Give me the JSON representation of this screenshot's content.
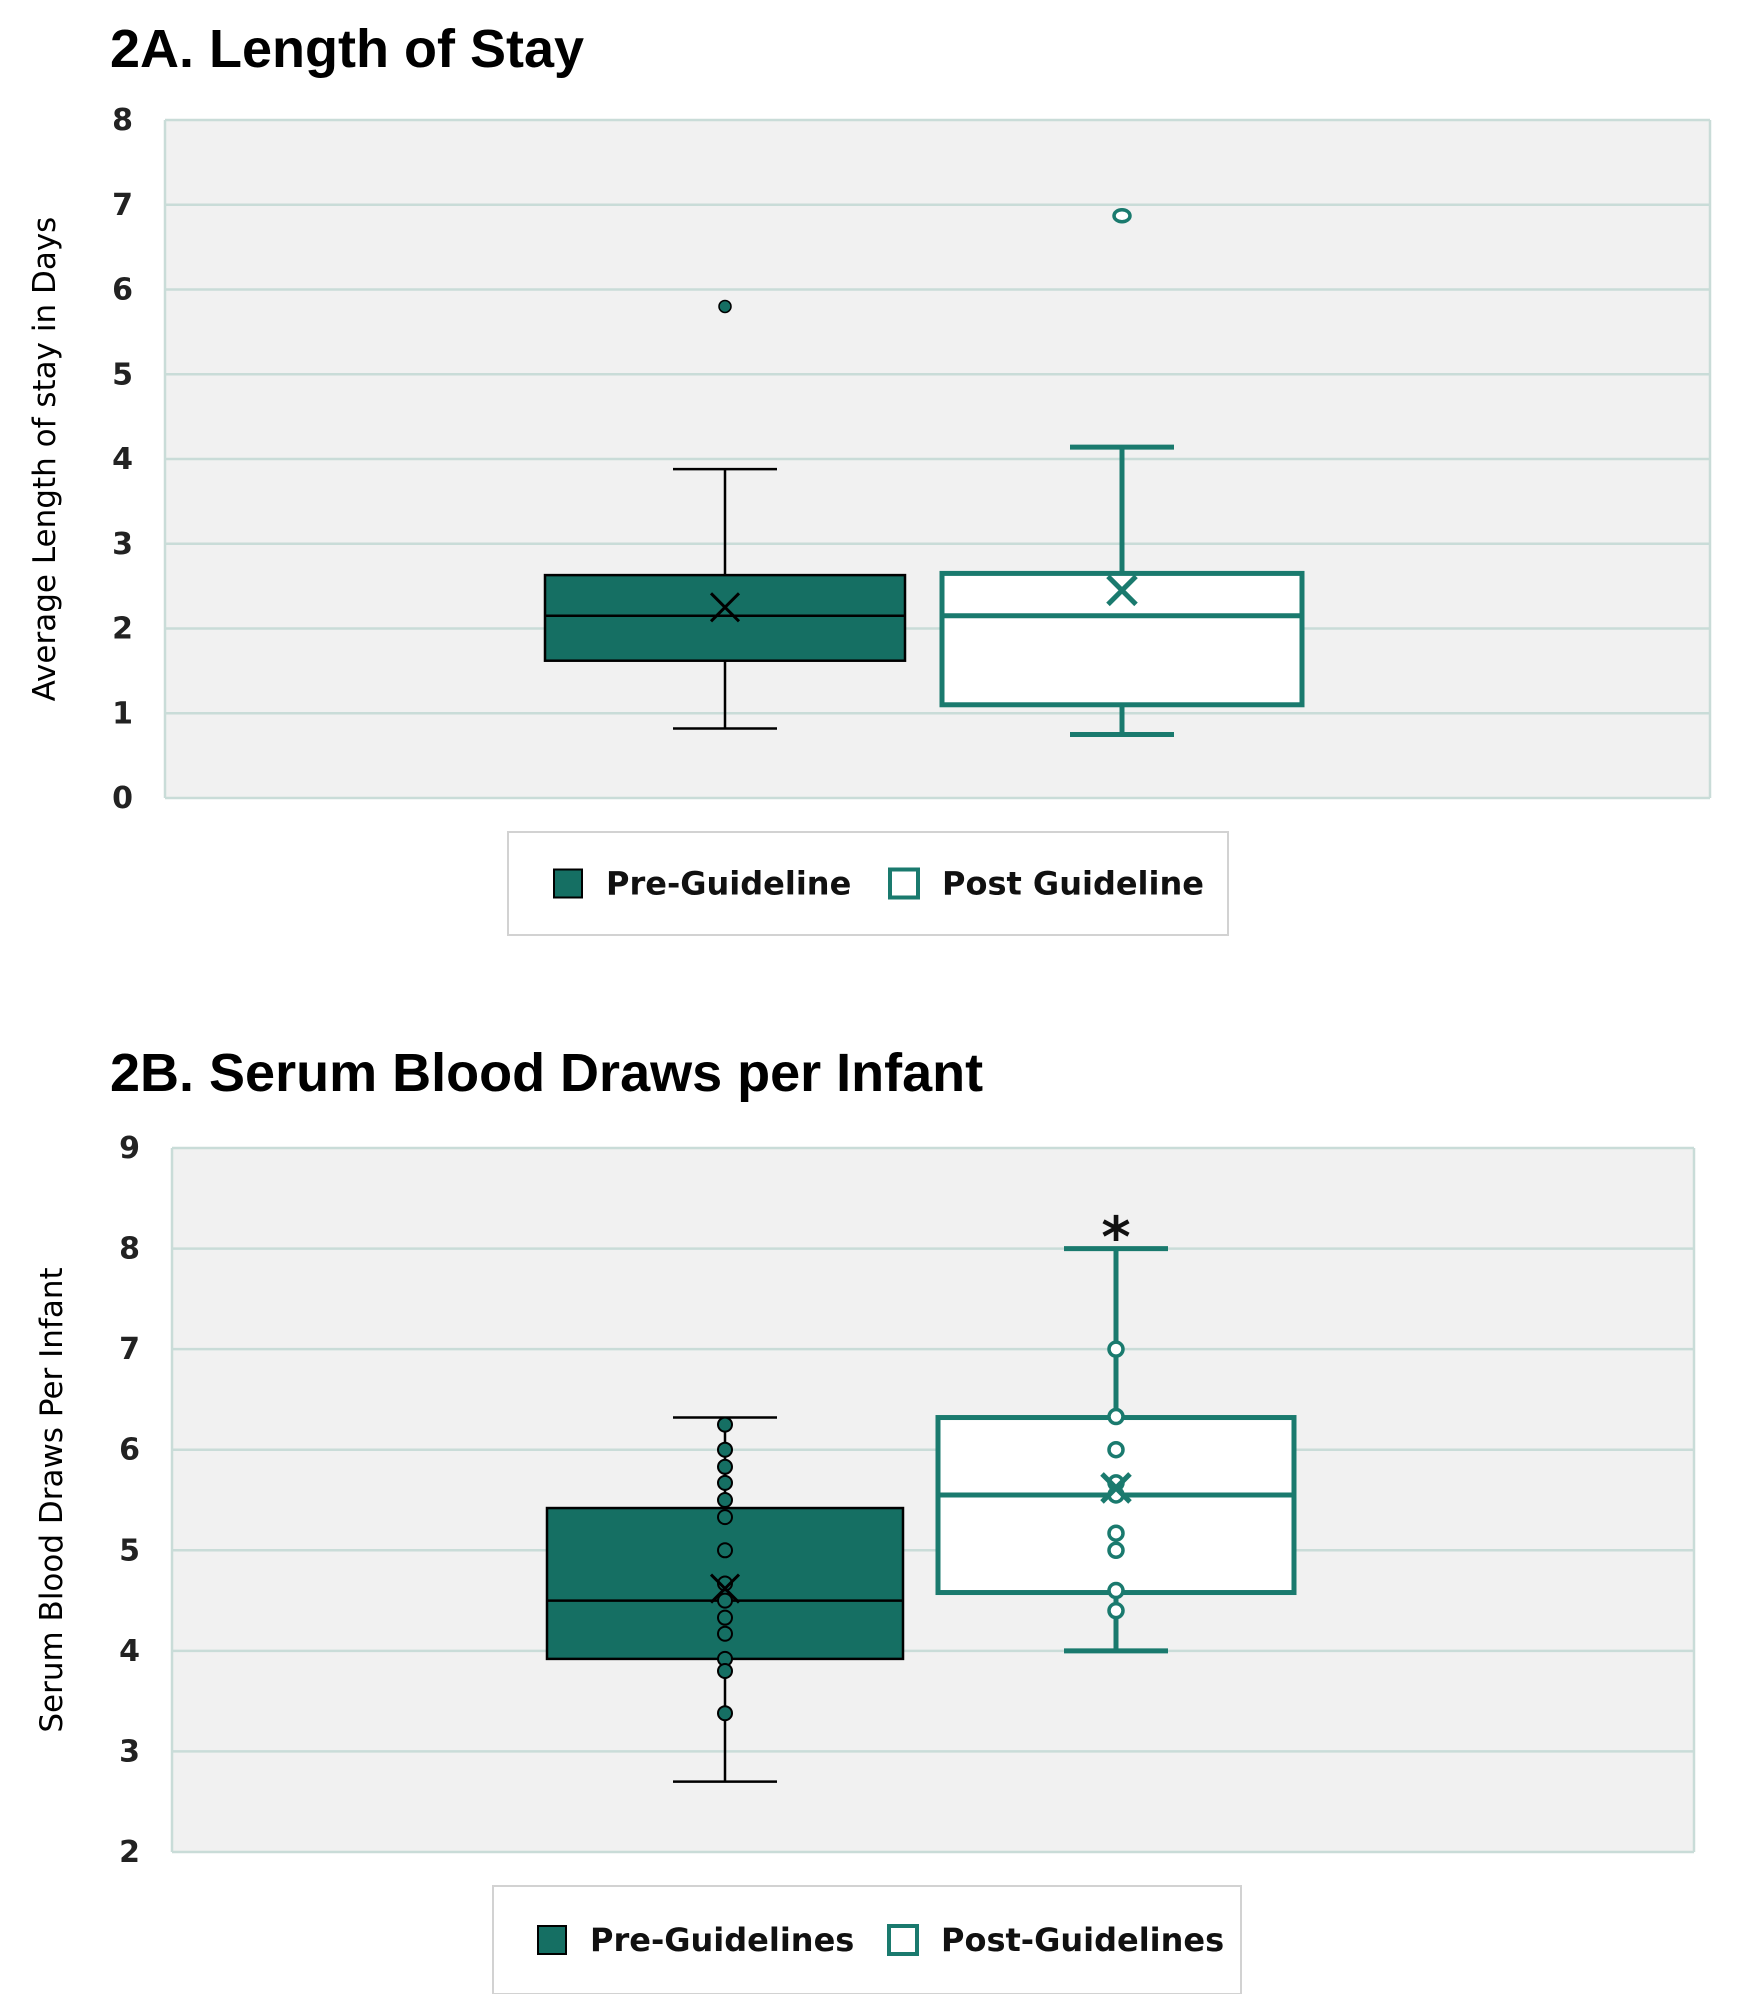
{
  "colors": {
    "pre": "#156f63",
    "post_stroke": "#1a7a6e",
    "plot_bg": "#f1f1f1",
    "grid": "#c9dcd8"
  },
  "chart_data": [
    {
      "type": "box",
      "title": "2A. Length of Stay",
      "ylabel": "Average Length of stay in Days",
      "ylim": [
        0,
        8
      ],
      "yticks": [
        "0",
        "1",
        "2",
        "3",
        "4",
        "5",
        "6",
        "7",
        "8"
      ],
      "grid": true,
      "legend_position": "bottom-center",
      "legend": [
        "Pre-Guideline",
        "Post Guideline"
      ],
      "series": [
        {
          "name": "Pre-Guideline",
          "whisker_low": 0.82,
          "q1": 1.62,
          "median": 2.15,
          "q3": 2.63,
          "whisker_high": 3.88,
          "mean": 2.25,
          "points": [
            5.8
          ]
        },
        {
          "name": "Post Guideline",
          "whisker_low": 0.75,
          "q1": 1.1,
          "median": 2.15,
          "q3": 2.65,
          "whisker_high": 4.14,
          "mean": 2.45,
          "points": [
            6.87
          ]
        }
      ]
    },
    {
      "type": "box",
      "title": "2B. Serum Blood Draws per Infant",
      "ylabel": "Serum Blood Draws Per Infant",
      "ylim": [
        2,
        9
      ],
      "yticks": [
        "2",
        "3",
        "4",
        "5",
        "6",
        "7",
        "8",
        "9"
      ],
      "grid": true,
      "legend_position": "bottom-center",
      "legend": [
        "Pre-Guidelines",
        "Post-Guidelines"
      ],
      "annotations": [
        "*"
      ],
      "series": [
        {
          "name": "Pre-Guidelines",
          "whisker_low": 2.7,
          "q1": 3.92,
          "median": 4.5,
          "q3": 5.42,
          "whisker_high": 6.32,
          "mean": 4.62,
          "points": [
            6.25,
            6.0,
            5.83,
            5.67,
            5.5,
            5.33,
            5.0,
            4.67,
            4.5,
            4.33,
            4.17,
            3.92,
            3.8,
            3.38
          ]
        },
        {
          "name": "Post-Guidelines",
          "whisker_low": 4.0,
          "q1": 4.58,
          "median": 5.55,
          "q3": 6.32,
          "whisker_high": 8.0,
          "mean": 5.62,
          "points": [
            7.0,
            6.33,
            6.0,
            5.67,
            5.55,
            5.17,
            5.0,
            4.6,
            4.4
          ]
        }
      ]
    }
  ]
}
